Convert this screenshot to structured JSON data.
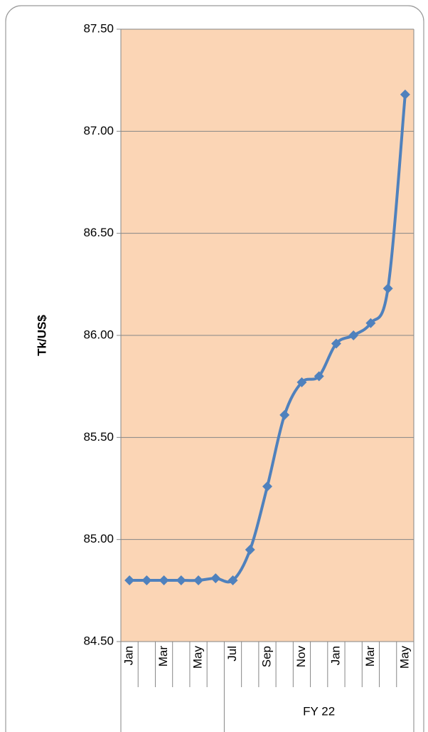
{
  "chart_data": {
    "type": "line",
    "y_label": "Tk/US$",
    "categories": [
      "Jan",
      null,
      "Mar",
      null,
      "May",
      null,
      "Jul",
      null,
      "Sep",
      null,
      "Nov",
      null,
      "Jan",
      null,
      "Mar",
      null,
      "May"
    ],
    "category_groups": [
      {
        "label": null,
        "size": 6
      },
      {
        "label": "FY 22",
        "size": 11
      }
    ],
    "series": [
      {
        "name": "Tk/US$",
        "color": "#4f81bd",
        "values": [
          84.8,
          84.8,
          84.8,
          84.8,
          84.8,
          84.81,
          84.8,
          84.95,
          85.26,
          85.61,
          85.77,
          85.8,
          85.96,
          86.0,
          86.06,
          86.23,
          87.18
        ]
      }
    ],
    "ylim": [
      84.5,
      87.5
    ],
    "yticks": [
      {
        "value": 84.5,
        "label": "84.50"
      },
      {
        "value": 85,
        "label": "85.00"
      },
      {
        "value": 85.5,
        "label": "85.50"
      },
      {
        "value": 86,
        "label": "86.00"
      },
      {
        "value": 86.5,
        "label": "86.50"
      },
      {
        "value": 87,
        "label": "87.00"
      },
      {
        "value": 87.5,
        "label": "87.50"
      }
    ],
    "grid": true,
    "plot_background": "#fbd5b5"
  }
}
